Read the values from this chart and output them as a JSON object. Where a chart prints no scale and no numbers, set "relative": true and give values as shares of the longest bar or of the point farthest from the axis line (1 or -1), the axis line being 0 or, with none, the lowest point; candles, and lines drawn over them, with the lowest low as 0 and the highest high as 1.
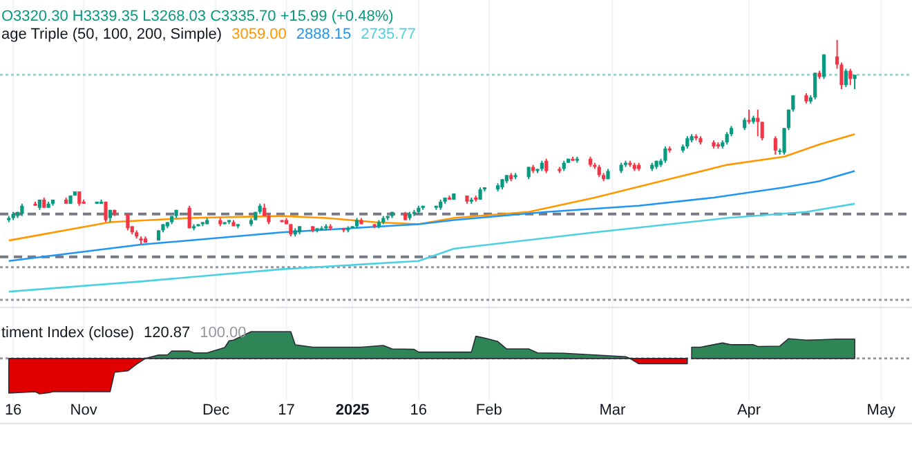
{
  "chart_data": [
    {
      "type": "candlestick",
      "title": "O3320.30 H3339.35 L3268.03 C3335.70 +15.99 (+0.48%)",
      "subtitle": "age Triple (50, 100, 200, Simple)",
      "relative": true,
      "xlim": [
        "2024-10-13",
        "2025-05-08"
      ],
      "xticks": [
        {
          "value": "2024-10-16",
          "label": null
        },
        {
          "value": "2024-11-01",
          "label": null
        },
        {
          "value": "2024-12-01",
          "label": null
        },
        {
          "value": "2024-12-17",
          "label": null
        },
        {
          "value": "2025-01-01",
          "label": null
        },
        {
          "value": "2025-01-16",
          "label": null
        },
        {
          "value": "2025-02-01",
          "label": null
        },
        {
          "value": "2025-03-01",
          "label": null
        },
        {
          "value": "2025-04-01",
          "label": null
        },
        {
          "value": "2025-05-01",
          "label": null
        }
      ],
      "tick_labels": false,
      "grid": "x",
      "x": [
        "2024-10-15",
        "2024-10-16",
        "2024-10-17",
        "2024-10-18",
        "2024-10-21",
        "2024-10-22",
        "2024-10-23",
        "2024-10-24",
        "2024-10-25",
        "2024-10-28",
        "2024-10-29",
        "2024-10-30",
        "2024-10-31",
        "2024-11-01",
        "2024-11-04",
        "2024-11-05",
        "2024-11-06",
        "2024-11-07",
        "2024-11-08",
        "2024-11-11",
        "2024-11-12",
        "2024-11-13",
        "2024-11-14",
        "2024-11-15",
        "2024-11-18",
        "2024-11-19",
        "2024-11-20",
        "2024-11-21",
        "2024-11-22",
        "2024-11-25",
        "2024-11-26",
        "2024-11-27",
        "2024-11-28",
        "2024-11-29",
        "2024-12-02",
        "2024-12-03",
        "2024-12-04",
        "2024-12-05",
        "2024-12-06",
        "2024-12-09",
        "2024-12-10",
        "2024-12-11",
        "2024-12-12",
        "2024-12-13",
        "2024-12-16",
        "2024-12-17",
        "2024-12-18",
        "2024-12-19",
        "2024-12-20",
        "2024-12-23",
        "2024-12-24",
        "2024-12-25",
        "2024-12-26",
        "2024-12-27",
        "2024-12-30",
        "2024-12-31",
        "2025-01-01",
        "2025-01-02",
        "2025-01-03",
        "2025-01-06",
        "2025-01-07",
        "2025-01-08",
        "2025-01-09",
        "2025-01-10",
        "2025-01-13",
        "2025-01-14",
        "2025-01-15",
        "2025-01-16",
        "2025-01-17",
        "2025-01-20",
        "2025-01-21",
        "2025-01-22",
        "2025-01-23",
        "2025-01-24",
        "2025-01-27",
        "2025-01-28",
        "2025-01-29",
        "2025-01-30",
        "2025-01-31",
        "2025-02-03",
        "2025-02-04",
        "2025-02-05",
        "2025-02-06",
        "2025-02-07",
        "2025-02-10",
        "2025-02-11",
        "2025-02-12",
        "2025-02-13",
        "2025-02-14",
        "2025-02-17",
        "2025-02-18",
        "2025-02-19",
        "2025-02-20",
        "2025-02-21",
        "2025-02-24",
        "2025-02-25",
        "2025-02-26",
        "2025-02-27",
        "2025-02-28",
        "2025-03-03",
        "2025-03-04",
        "2025-03-05",
        "2025-03-06",
        "2025-03-07",
        "2025-03-10",
        "2025-03-11",
        "2025-03-12",
        "2025-03-13",
        "2025-03-14",
        "2025-03-17",
        "2025-03-18",
        "2025-03-19",
        "2025-03-20",
        "2025-03-21",
        "2025-03-24",
        "2025-03-25",
        "2025-03-26",
        "2025-03-27",
        "2025-03-28",
        "2025-03-31",
        "2025-04-01",
        "2025-04-02",
        "2025-04-03",
        "2025-04-04",
        "2025-04-07",
        "2025-04-08",
        "2025-04-09",
        "2025-04-10",
        "2025-04-11",
        "2025-04-14",
        "2025-04-15",
        "2025-04-16",
        "2025-04-17",
        "2025-04-18",
        "2025-04-21",
        "2025-04-22",
        "2025-04-23",
        "2025-04-24",
        "2025-04-25"
      ],
      "ohlc": [
        [
          0.12,
          0.14,
          0.11,
          0.13
        ],
        [
          0.13,
          0.16,
          0.12,
          0.15
        ],
        [
          0.14,
          0.16,
          0.13,
          0.16
        ],
        [
          0.15,
          0.2,
          0.14,
          0.19
        ],
        [
          0.2,
          0.21,
          0.19,
          0.19
        ],
        [
          0.18,
          0.22,
          0.17,
          0.22
        ],
        [
          0.22,
          0.23,
          0.18,
          0.18
        ],
        [
          0.18,
          0.21,
          0.18,
          0.2
        ],
        [
          0.2,
          0.22,
          0.19,
          0.22
        ],
        [
          0.22,
          0.23,
          0.2,
          0.2
        ],
        [
          0.2,
          0.24,
          0.2,
          0.24
        ],
        [
          0.24,
          0.26,
          0.24,
          0.26
        ],
        [
          0.26,
          0.26,
          0.19,
          0.2
        ],
        [
          0.21,
          0.22,
          0.2,
          0.2
        ],
        [
          0.2,
          0.21,
          0.2,
          0.21
        ],
        [
          0.2,
          0.22,
          0.2,
          0.21
        ],
        [
          0.21,
          0.21,
          0.11,
          0.12
        ],
        [
          0.13,
          0.17,
          0.11,
          0.17
        ],
        [
          0.17,
          0.17,
          0.14,
          0.15
        ],
        [
          0.15,
          0.15,
          0.07,
          0.08
        ],
        [
          0.09,
          0.09,
          0.05,
          0.06
        ],
        [
          0.06,
          0.07,
          0.03,
          0.04
        ],
        [
          0.03,
          0.04,
          0,
          0.02
        ],
        [
          0.03,
          0.04,
          0.01,
          0.01
        ],
        [
          0.02,
          0.07,
          0.02,
          0.07
        ],
        [
          0.07,
          0.1,
          0.06,
          0.1
        ],
        [
          0.09,
          0.11,
          0.08,
          0.11
        ],
        [
          0.11,
          0.14,
          0.1,
          0.14
        ],
        [
          0.14,
          0.17,
          0.13,
          0.17
        ],
        [
          0.18,
          0.19,
          0.08,
          0.08
        ],
        [
          0.08,
          0.1,
          0.07,
          0.09
        ],
        [
          0.09,
          0.1,
          0.09,
          0.1
        ],
        [
          0.1,
          0.11,
          0.09,
          0.11
        ],
        [
          0.1,
          0.13,
          0.1,
          0.12
        ],
        [
          0.12,
          0.13,
          0.09,
          0.1
        ],
        [
          0.1,
          0.11,
          0.1,
          0.11
        ],
        [
          0.11,
          0.12,
          0.1,
          0.12
        ],
        [
          0.11,
          0.12,
          0.09,
          0.09
        ],
        [
          0.09,
          0.1,
          0.08,
          0.1
        ],
        [
          0.1,
          0.13,
          0.09,
          0.12
        ],
        [
          0.12,
          0.16,
          0.12,
          0.16
        ],
        [
          0.16,
          0.2,
          0.15,
          0.19
        ],
        [
          0.18,
          0.2,
          0.14,
          0.14
        ],
        [
          0.14,
          0.15,
          0.1,
          0.11
        ],
        [
          0.12,
          0.12,
          0.11,
          0.11
        ],
        [
          0.12,
          0.13,
          0.1,
          0.1
        ],
        [
          0.1,
          0.1,
          0.04,
          0.05
        ],
        [
          0.05,
          0.08,
          0.04,
          0.07
        ],
        [
          0.06,
          0.09,
          0.05,
          0.09
        ],
        [
          0.09,
          0.09,
          0.06,
          0.07
        ],
        [
          0.07,
          0.08,
          0.06,
          0.08
        ],
        [
          0.08,
          0.09,
          0.07,
          0.08
        ],
        [
          0.08,
          0.1,
          0.07,
          0.09
        ],
        [
          0.09,
          0.1,
          0.07,
          0.08
        ],
        [
          0.08,
          0.08,
          0.06,
          0.07
        ],
        [
          0.07,
          0.09,
          0.06,
          0.08
        ],
        [
          0.08,
          0.09,
          0.08,
          0.09
        ],
        [
          0.09,
          0.13,
          0.08,
          0.12
        ],
        [
          0.12,
          0.13,
          0.1,
          0.1
        ],
        [
          0.1,
          0.1,
          0.08,
          0.09
        ],
        [
          0.09,
          0.12,
          0.08,
          0.11
        ],
        [
          0.11,
          0.14,
          0.1,
          0.13
        ],
        [
          0.13,
          0.14,
          0.12,
          0.14
        ],
        [
          0.14,
          0.16,
          0.13,
          0.16
        ],
        [
          0.15,
          0.16,
          0.12,
          0.12
        ],
        [
          0.13,
          0.16,
          0.12,
          0.15
        ],
        [
          0.15,
          0.17,
          0.14,
          0.16
        ],
        [
          0.16,
          0.19,
          0.15,
          0.18
        ],
        [
          0.18,
          0.19,
          0.17,
          0.19
        ],
        [
          0.18,
          0.19,
          0.17,
          0.19
        ],
        [
          0.18,
          0.22,
          0.17,
          0.21
        ],
        [
          0.21,
          0.23,
          0.2,
          0.23
        ],
        [
          0.23,
          0.24,
          0.22,
          0.22
        ],
        [
          0.22,
          0.25,
          0.22,
          0.25
        ],
        [
          0.24,
          0.24,
          0.2,
          0.21
        ],
        [
          0.21,
          0.23,
          0.2,
          0.22
        ],
        [
          0.23,
          0.24,
          0.21,
          0.22
        ],
        [
          0.22,
          0.28,
          0.22,
          0.27
        ],
        [
          0.27,
          0.28,
          0.26,
          0.28
        ],
        [
          0.27,
          0.3,
          0.26,
          0.29
        ],
        [
          0.28,
          0.32,
          0.27,
          0.32
        ],
        [
          0.31,
          0.34,
          0.3,
          0.34
        ],
        [
          0.34,
          0.35,
          0.31,
          0.32
        ],
        [
          0.33,
          0.35,
          0.32,
          0.34
        ],
        [
          0.33,
          0.38,
          0.32,
          0.38
        ],
        [
          0.38,
          0.39,
          0.35,
          0.36
        ],
        [
          0.36,
          0.37,
          0.35,
          0.37
        ],
        [
          0.37,
          0.41,
          0.36,
          0.4
        ],
        [
          0.41,
          0.42,
          0.35,
          0.36
        ],
        [
          0.37,
          0.38,
          0.35,
          0.36
        ],
        [
          0.37,
          0.41,
          0.36,
          0.4
        ],
        [
          0.4,
          0.42,
          0.4,
          0.42
        ],
        [
          0.42,
          0.43,
          0.41,
          0.41
        ],
        [
          0.41,
          0.43,
          0.4,
          0.42
        ],
        [
          0.42,
          0.43,
          0.38,
          0.39
        ],
        [
          0.39,
          0.4,
          0.37,
          0.38
        ],
        [
          0.38,
          0.39,
          0.33,
          0.34
        ],
        [
          0.34,
          0.35,
          0.31,
          0.32
        ],
        [
          0.32,
          0.37,
          0.32,
          0.36
        ],
        [
          0.36,
          0.4,
          0.35,
          0.39
        ],
        [
          0.39,
          0.41,
          0.38,
          0.4
        ],
        [
          0.4,
          0.41,
          0.38,
          0.39
        ],
        [
          0.39,
          0.4,
          0.36,
          0.37
        ],
        [
          0.39,
          0.4,
          0.36,
          0.37
        ],
        [
          0.37,
          0.4,
          0.36,
          0.39
        ],
        [
          0.38,
          0.41,
          0.37,
          0.41
        ],
        [
          0.39,
          0.42,
          0.38,
          0.41
        ],
        [
          0.41,
          0.48,
          0.4,
          0.47
        ],
        [
          0.47,
          0.48,
          0.45,
          0.46
        ],
        [
          0.46,
          0.49,
          0.45,
          0.48
        ],
        [
          0.48,
          0.53,
          0.47,
          0.52
        ],
        [
          0.51,
          0.54,
          0.5,
          0.53
        ],
        [
          0.53,
          0.54,
          0.51,
          0.52
        ],
        [
          0.52,
          0.53,
          0.49,
          0.5
        ],
        [
          0.5,
          0.51,
          0.47,
          0.48
        ],
        [
          0.49,
          0.5,
          0.47,
          0.48
        ],
        [
          0.48,
          0.51,
          0.47,
          0.5
        ],
        [
          0.5,
          0.55,
          0.49,
          0.54
        ],
        [
          0.54,
          0.58,
          0.53,
          0.57
        ],
        [
          0.57,
          0.62,
          0.56,
          0.61
        ],
        [
          0.61,
          0.66,
          0.59,
          0.6
        ],
        [
          0.6,
          0.63,
          0.59,
          0.62
        ],
        [
          0.62,
          0.66,
          0.53,
          0.6
        ],
        [
          0.6,
          0.6,
          0.51,
          0.52
        ],
        [
          0.52,
          0.53,
          0.44,
          0.46
        ],
        [
          0.46,
          0.47,
          0.44,
          0.46
        ],
        [
          0.45,
          0.57,
          0.44,
          0.57
        ],
        [
          0.57,
          0.66,
          0.56,
          0.66
        ],
        [
          0.66,
          0.73,
          0.65,
          0.73
        ],
        [
          0.73,
          0.74,
          0.69,
          0.7
        ],
        [
          0.7,
          0.73,
          0.69,
          0.72
        ],
        [
          0.72,
          0.84,
          0.71,
          0.84
        ],
        [
          0.84,
          0.85,
          0.81,
          0.82
        ],
        [
          0.82,
          0.93,
          0.81,
          0.93
        ],
        [
          0.92,
          1,
          0.86,
          0.88
        ],
        [
          0.88,
          0.89,
          0.76,
          0.78
        ],
        [
          0.78,
          0.86,
          0.77,
          0.85
        ],
        [
          0.85,
          0.86,
          0.78,
          0.81
        ],
        [
          0.81,
          0.83,
          0.76,
          0.83
        ]
      ],
      "colors": [
        "#089981",
        "#089981",
        "#089981",
        "#089981",
        "#f23645",
        "#089981",
        "#f23645",
        "#089981",
        "#089981",
        "#f23645",
        "#089981",
        "#089981",
        "#f23645",
        "#f23645",
        "#089981",
        "#089981",
        "#f23645",
        "#089981",
        "#f23645",
        "#f23645",
        "#f23645",
        "#f23645",
        "#f23645",
        "#f23645",
        "#089981",
        "#089981",
        "#089981",
        "#089981",
        "#089981",
        "#f23645",
        "#089981",
        "#089981",
        "#089981",
        "#089981",
        "#f23645",
        "#089981",
        "#089981",
        "#f23645",
        "#089981",
        "#089981",
        "#089981",
        "#089981",
        "#f23645",
        "#f23645",
        "#f23645",
        "#f23645",
        "#f23645",
        "#089981",
        "#089981",
        "#f23645",
        "#089981",
        "#089981",
        "#089981",
        "#f23645",
        "#f23645",
        "#089981",
        "#089981",
        "#089981",
        "#f23645",
        "#f23645",
        "#089981",
        "#089981",
        "#089981",
        "#089981",
        "#f23645",
        "#089981",
        "#089981",
        "#089981",
        "#089981",
        "#089981",
        "#089981",
        "#089981",
        "#f23645",
        "#089981",
        "#f23645",
        "#089981",
        "#f23645",
        "#089981",
        "#089981",
        "#089981",
        "#089981",
        "#089981",
        "#f23645",
        "#089981",
        "#089981",
        "#f23645",
        "#089981",
        "#089981",
        "#f23645",
        "#f23645",
        "#089981",
        "#089981",
        "#f23645",
        "#089981",
        "#f23645",
        "#f23645",
        "#f23645",
        "#f23645",
        "#089981",
        "#089981",
        "#089981",
        "#f23645",
        "#f23645",
        "#f23645",
        "#089981",
        "#089981",
        "#089981",
        "#089981",
        "#f23645",
        "#089981",
        "#089981",
        "#089981",
        "#f23645",
        "#f23645",
        "#f23645",
        "#f23645",
        "#089981",
        "#089981",
        "#089981",
        "#089981",
        "#f23645",
        "#089981",
        "#f23645",
        "#f23645",
        "#f23645",
        "#089981",
        "#089981",
        "#089981",
        "#089981",
        "#f23645",
        "#089981",
        "#089981",
        "#f23645",
        "#089981",
        "#f23645",
        "#f23645",
        "#089981",
        "#f23645",
        "#089981"
      ],
      "series": [
        {
          "name": "3059.00",
          "type": "line",
          "color": "#ff9800",
          "x": [
            "2024-10-15",
            "2024-11-07",
            "2024-11-25",
            "2024-12-16",
            "2024-12-26",
            "2025-01-06",
            "2025-01-16",
            "2025-01-24",
            "2025-02-10",
            "2025-02-25",
            "2025-03-12",
            "2025-03-27",
            "2025-04-09",
            "2025-04-17",
            "2025-04-25"
          ],
          "values": [
            0.02,
            0.11,
            0.13,
            0.14,
            0.13,
            0.11,
            0.1,
            0.13,
            0.16,
            0.23,
            0.31,
            0.39,
            0.43,
            0.49,
            0.54
          ]
        },
        {
          "name": "2888.15",
          "type": "line",
          "color": "#2196f3",
          "x": [
            "2024-10-15",
            "2024-11-14",
            "2024-12-16",
            "2025-01-16",
            "2025-01-24",
            "2025-02-14",
            "2025-03-07",
            "2025-03-24",
            "2025-04-09",
            "2025-04-17",
            "2025-04-25"
          ],
          "values": [
            -0.08,
            0,
            0.06,
            0.1,
            0.12,
            0.16,
            0.19,
            0.23,
            0.28,
            0.31,
            0.36
          ]
        },
        {
          "name": "2735.77",
          "type": "line",
          "color": "#4dd0e1",
          "x": [
            "2024-10-15",
            "2024-11-14",
            "2024-12-16",
            "2025-01-16",
            "2025-01-24",
            "2025-02-25",
            "2025-03-27",
            "2025-04-14",
            "2025-04-25"
          ],
          "values": [
            -0.23,
            -0.18,
            -0.12,
            -0.08,
            -0.02,
            0.06,
            0.13,
            0.16,
            0.2
          ]
        }
      ],
      "ref_lines": [
        {
          "axis": "y",
          "value": 0.15,
          "color": "#787b86",
          "line_style": "dashed"
        },
        {
          "axis": "y",
          "value": -0.06,
          "color": "#787b86",
          "line_style": "dashed"
        },
        {
          "axis": "y",
          "value": -0.11,
          "color": "#9598a1",
          "line_style": "dotted"
        },
        {
          "axis": "y",
          "value": -0.27,
          "color": "#9598a1",
          "line_style": "dotted"
        },
        {
          "axis": "y",
          "value": 0.83,
          "color": "#8fd8cb",
          "line_style": "dotted"
        }
      ]
    },
    {
      "type": "area",
      "title": "timent Index (close)",
      "annotations": [
        "120.87",
        "100.00"
      ],
      "relative": true,
      "xlim": [
        "2024-10-13",
        "2025-05-08"
      ],
      "xticks": [
        {
          "value": "2024-10-16",
          "label": "16"
        },
        {
          "value": "2024-11-01",
          "label": "Nov"
        },
        {
          "value": "2024-12-01",
          "label": "Dec"
        },
        {
          "value": "2024-12-17",
          "label": "17"
        },
        {
          "value": "2025-01-01",
          "label": "2025"
        },
        {
          "value": "2025-01-16",
          "label": "16"
        },
        {
          "value": "2025-02-01",
          "label": "Feb"
        },
        {
          "value": "2025-03-01",
          "label": "Mar"
        },
        {
          "value": "2025-04-01",
          "label": "Apr"
        },
        {
          "value": "2025-05-01",
          "label": "May"
        }
      ],
      "tick_labels": "x",
      "grid": "x",
      "series": [
        {
          "color": "#e00000",
          "x": [
            "2024-10-15",
            "2024-10-21",
            "2024-10-22",
            "2024-10-24",
            "2024-10-25",
            "2024-11-07",
            "2024-11-08",
            "2024-11-11",
            "2024-11-13",
            "2024-11-15"
          ],
          "values": [
            -0.98,
            -0.94,
            -1,
            -0.97,
            -0.94,
            -0.94,
            -0.39,
            -0.35,
            -0.16,
            0
          ]
        },
        {
          "color": "#2e8555",
          "x": [
            "2024-11-15",
            "2024-11-18",
            "2024-11-20",
            "2024-11-21",
            "2024-11-25",
            "2024-11-26",
            "2024-11-29",
            "2024-12-03",
            "2024-12-04",
            "2024-12-05",
            "2024-12-09",
            "2024-12-18",
            "2024-12-19",
            "2024-12-23",
            "2025-01-03",
            "2025-01-08",
            "2025-01-10",
            "2025-01-15",
            "2025-01-16",
            "2025-01-28",
            "2025-01-29",
            "2025-01-31",
            "2025-02-03",
            "2025-02-05",
            "2025-02-10",
            "2025-02-12",
            "2025-02-18",
            "2025-02-25",
            "2025-03-04",
            "2025-03-05"
          ],
          "values": [
            0,
            0.1,
            0.1,
            0.21,
            0.21,
            0.16,
            0.16,
            0.31,
            0.5,
            0.52,
            0.76,
            0.76,
            0.39,
            0.32,
            0.32,
            0.37,
            0.27,
            0.26,
            0.18,
            0.18,
            0.63,
            0.58,
            0.48,
            0.27,
            0.27,
            0.16,
            0.15,
            0.1,
            0.05,
            0
          ]
        },
        {
          "color": "#e00000",
          "x": [
            "2025-03-05",
            "2025-03-07",
            "2025-03-18"
          ],
          "values": [
            0,
            -0.15,
            -0.15
          ]
        },
        {
          "color": "#2e8555",
          "x": [
            "2025-03-19",
            "2025-03-21",
            "2025-03-26",
            "2025-03-28",
            "2025-04-02",
            "2025-04-03",
            "2025-04-08",
            "2025-04-10",
            "2025-04-14",
            "2025-04-17",
            "2025-04-21",
            "2025-04-25"
          ],
          "values": [
            0.32,
            0.32,
            0.44,
            0.39,
            0.39,
            0.34,
            0.35,
            0.56,
            0.52,
            0.53,
            0.55,
            0.55
          ]
        }
      ],
      "ref_lines": [
        {
          "axis": "y",
          "value": 0,
          "color": "#9598a1",
          "line_style": "dotted"
        }
      ]
    }
  ]
}
